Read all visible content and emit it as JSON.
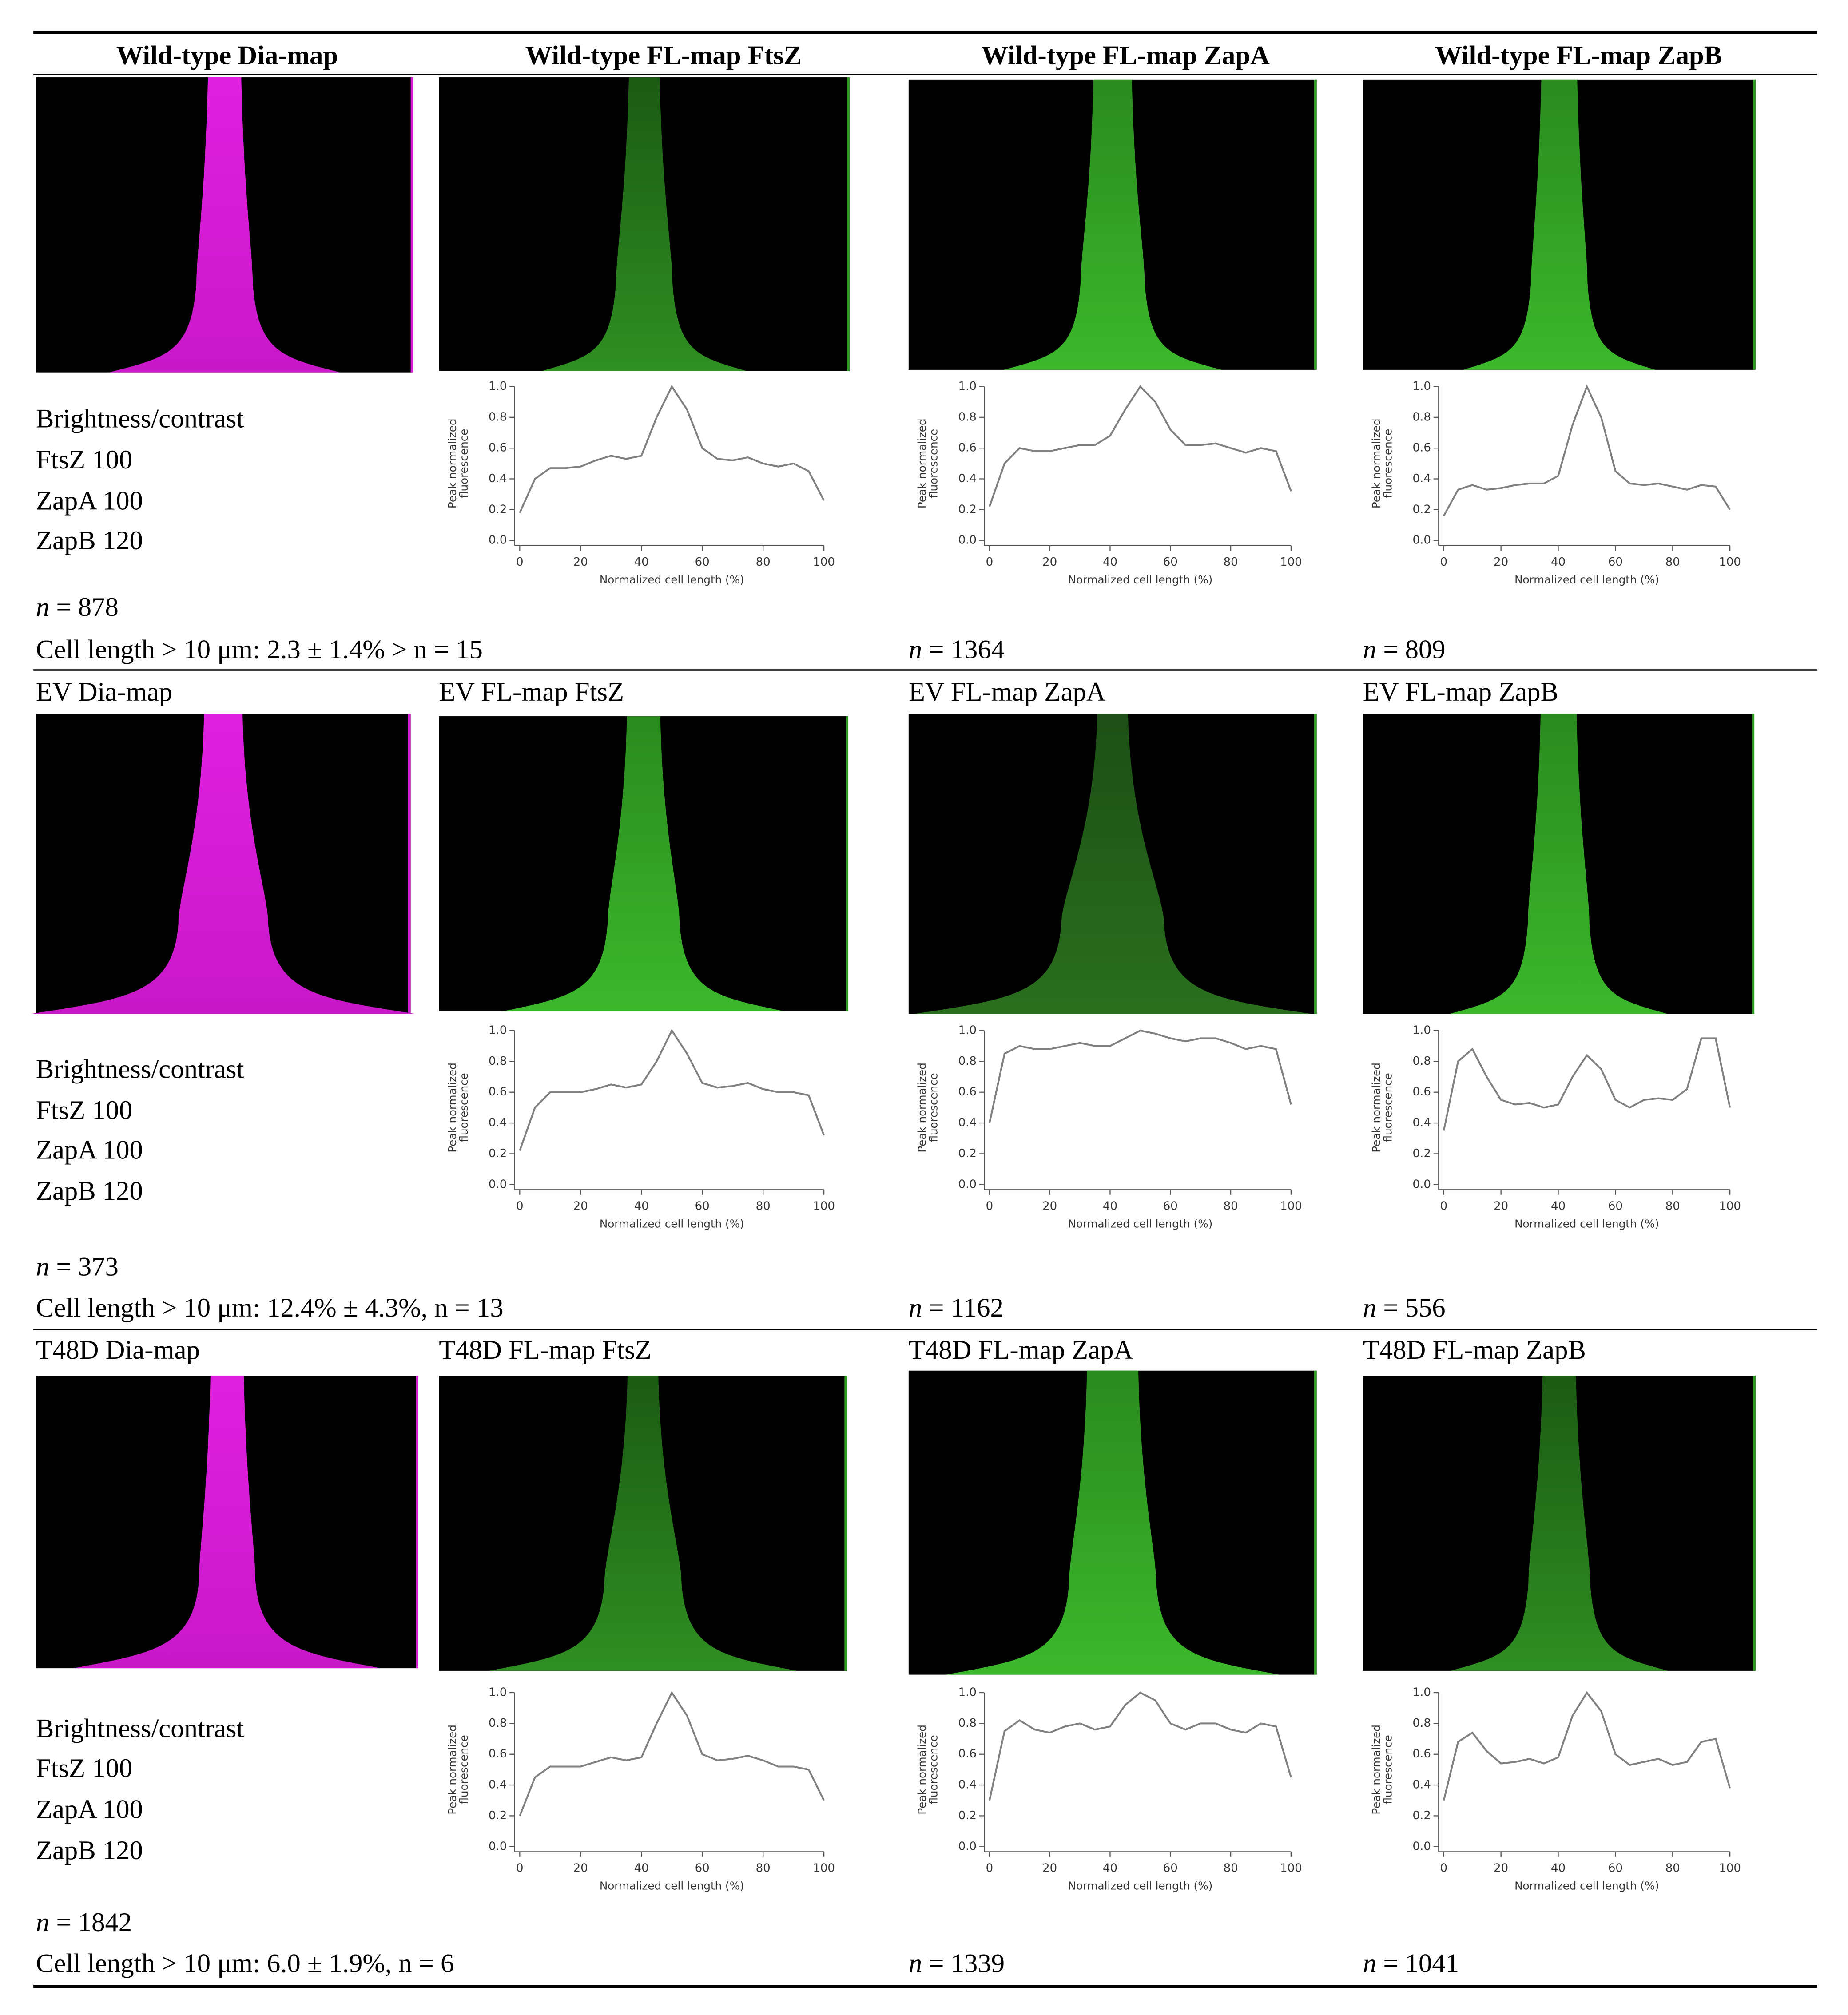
{
  "table": {
    "rows": [
      {
        "labels": [
          "Wild-type Dia-map",
          "Wild-type FL-map FtsZ",
          "Wild-type FL-map ZapA",
          "Wild-type FL-map ZapB"
        ],
        "notes": [
          "Brightness/contrast",
          "FtsZ 100",
          "ZapA 100",
          "ZapB 120"
        ],
        "n_dia": "n = 878",
        "cell_length": "Cell length > 10 μm: 2.3 ± 1.4% > n = 15",
        "counts": [
          "n = 1364",
          "n = 809"
        ]
      },
      {
        "labels": [
          "EV Dia-map",
          "EV FL-map FtsZ",
          "EV FL-map ZapA",
          "EV FL-map ZapB"
        ],
        "notes": [
          "Brightness/contrast",
          "FtsZ 100",
          "ZapA 100",
          "ZapB 120"
        ],
        "n_dia": "n = 373",
        "cell_length": "Cell length > 10 μm: 12.4% ± 4.3%, n = 13",
        "counts": [
          "n = 1162",
          "n = 556"
        ]
      },
      {
        "labels": [
          "T48D Dia-map",
          "T48D FL-map FtsZ",
          "T48D FL-map ZapA",
          "T48D FL-map ZapB"
        ],
        "notes": [
          "Brightness/contrast",
          "FtsZ 100",
          "ZapA 100",
          "ZapB 120"
        ],
        "n_dia": "n = 1842",
        "cell_length": "Cell length > 10 μm: 6.0 ± 1.9%, n = 6",
        "counts": [
          "n = 1339",
          "n = 1041"
        ]
      }
    ]
  },
  "chart_data": [
    {
      "type": "line",
      "xlabel": "Normalized cell length (%)",
      "ylabel": [
        "Peak normalized",
        "fluorescence"
      ],
      "x": [
        0,
        5,
        10,
        15,
        20,
        25,
        30,
        35,
        40,
        45,
        50,
        55,
        60,
        65,
        70,
        75,
        80,
        85,
        90,
        95,
        100
      ],
      "series": [
        {
          "color": "#808080",
          "values": [
            0.18,
            0.4,
            0.47,
            0.47,
            0.48,
            0.52,
            0.55,
            0.53,
            0.55,
            0.8,
            1.0,
            0.85,
            0.6,
            0.53,
            0.52,
            0.54,
            0.5,
            0.48,
            0.5,
            0.45,
            0.26
          ]
        }
      ],
      "xlim": [
        0,
        100
      ],
      "ylim": [
        0,
        1
      ],
      "xticks": [
        0,
        20,
        40,
        60,
        80,
        100
      ],
      "yticks": [
        {
          "value": 0,
          "label": "0.0"
        },
        0.2,
        0.4,
        0.6,
        0.8,
        {
          "value": 1,
          "label": "1.0"
        }
      ]
    },
    {
      "type": "line",
      "xlabel": "Normalized cell length (%)",
      "ylabel": [
        "Peak normalized",
        "fluorescence"
      ],
      "x": [
        0,
        5,
        10,
        15,
        20,
        25,
        30,
        35,
        40,
        45,
        50,
        55,
        60,
        65,
        70,
        75,
        80,
        85,
        90,
        95,
        100
      ],
      "series": [
        {
          "color": "#808080",
          "values": [
            0.22,
            0.5,
            0.6,
            0.58,
            0.58,
            0.6,
            0.62,
            0.62,
            0.68,
            0.85,
            1.0,
            0.9,
            0.72,
            0.62,
            0.62,
            0.63,
            0.6,
            0.57,
            0.6,
            0.58,
            0.32
          ]
        }
      ],
      "xlim": [
        0,
        100
      ],
      "ylim": [
        0,
        1
      ],
      "xticks": [
        0,
        20,
        40,
        60,
        80,
        100
      ],
      "yticks": [
        {
          "value": 0,
          "label": "0.0"
        },
        0.2,
        0.4,
        0.6,
        0.8,
        {
          "value": 1,
          "label": "1.0"
        }
      ]
    },
    {
      "type": "line",
      "xlabel": "Normalized cell length (%)",
      "ylabel": [
        "Peak normalized",
        "fluorescence"
      ],
      "x": [
        0,
        5,
        10,
        15,
        20,
        25,
        30,
        35,
        40,
        45,
        50,
        55,
        60,
        65,
        70,
        75,
        80,
        85,
        90,
        95,
        100
      ],
      "series": [
        {
          "color": "#808080",
          "values": [
            0.16,
            0.33,
            0.36,
            0.33,
            0.34,
            0.36,
            0.37,
            0.37,
            0.42,
            0.75,
            1.0,
            0.8,
            0.45,
            0.37,
            0.36,
            0.37,
            0.35,
            0.33,
            0.36,
            0.35,
            0.2
          ]
        }
      ],
      "xlim": [
        0,
        100
      ],
      "ylim": [
        0,
        1
      ],
      "xticks": [
        0,
        20,
        40,
        60,
        80,
        100
      ],
      "yticks": [
        {
          "value": 0,
          "label": "0.0"
        },
        0.2,
        0.4,
        0.6,
        0.8,
        {
          "value": 1,
          "label": "1.0"
        }
      ]
    },
    {
      "type": "line",
      "xlabel": "Normalized cell length (%)",
      "ylabel": [
        "Peak normalized",
        "fluorescence"
      ],
      "x": [
        0,
        5,
        10,
        15,
        20,
        25,
        30,
        35,
        40,
        45,
        50,
        55,
        60,
        65,
        70,
        75,
        80,
        85,
        90,
        95,
        100
      ],
      "series": [
        {
          "color": "#808080",
          "values": [
            0.22,
            0.5,
            0.6,
            0.6,
            0.6,
            0.62,
            0.65,
            0.63,
            0.65,
            0.8,
            1.0,
            0.85,
            0.66,
            0.63,
            0.64,
            0.66,
            0.62,
            0.6,
            0.6,
            0.58,
            0.32
          ]
        }
      ],
      "xlim": [
        0,
        100
      ],
      "ylim": [
        0,
        1
      ],
      "xticks": [
        0,
        20,
        40,
        60,
        80,
        100
      ],
      "yticks": [
        {
          "value": 0,
          "label": "0.0"
        },
        0.2,
        0.4,
        0.6,
        0.8,
        {
          "value": 1,
          "label": "1.0"
        }
      ]
    },
    {
      "type": "line",
      "xlabel": "Normalized cell length (%)",
      "ylabel": [
        "Peak normalized",
        "fluorescence"
      ],
      "x": [
        0,
        5,
        10,
        15,
        20,
        25,
        30,
        35,
        40,
        45,
        50,
        55,
        60,
        65,
        70,
        75,
        80,
        85,
        90,
        95,
        100
      ],
      "series": [
        {
          "color": "#808080",
          "values": [
            0.4,
            0.85,
            0.9,
            0.88,
            0.88,
            0.9,
            0.92,
            0.9,
            0.9,
            0.95,
            1.0,
            0.98,
            0.95,
            0.93,
            0.95,
            0.95,
            0.92,
            0.88,
            0.9,
            0.88,
            0.52
          ]
        }
      ],
      "xlim": [
        0,
        100
      ],
      "ylim": [
        0,
        1
      ],
      "xticks": [
        0,
        20,
        40,
        60,
        80,
        100
      ],
      "yticks": [
        {
          "value": 0,
          "label": "0.0"
        },
        0.2,
        0.4,
        0.6,
        0.8,
        {
          "value": 1,
          "label": "1.0"
        }
      ]
    },
    {
      "type": "line",
      "xlabel": "Normalized cell length (%)",
      "ylabel": [
        "Peak normalized",
        "fluorescence"
      ],
      "x": [
        0,
        5,
        10,
        15,
        20,
        25,
        30,
        35,
        40,
        45,
        50,
        55,
        60,
        65,
        70,
        75,
        80,
        85,
        90,
        95,
        100
      ],
      "series": [
        {
          "color": "#808080",
          "values": [
            0.35,
            0.8,
            0.88,
            0.7,
            0.55,
            0.52,
            0.53,
            0.5,
            0.52,
            0.7,
            0.84,
            0.75,
            0.55,
            0.5,
            0.55,
            0.56,
            0.55,
            0.62,
            0.95,
            0.95,
            0.5
          ]
        }
      ],
      "xlim": [
        0,
        100
      ],
      "ylim": [
        0,
        1
      ],
      "xticks": [
        0,
        20,
        40,
        60,
        80,
        100
      ],
      "yticks": [
        {
          "value": 0,
          "label": "0.0"
        },
        0.2,
        0.4,
        0.6,
        0.8,
        {
          "value": 1,
          "label": "1.0"
        }
      ]
    },
    {
      "type": "line",
      "xlabel": "Normalized cell length (%)",
      "ylabel": [
        "Peak normalized",
        "fluorescence"
      ],
      "x": [
        0,
        5,
        10,
        15,
        20,
        25,
        30,
        35,
        40,
        45,
        50,
        55,
        60,
        65,
        70,
        75,
        80,
        85,
        90,
        95,
        100
      ],
      "series": [
        {
          "color": "#808080",
          "values": [
            0.2,
            0.45,
            0.52,
            0.52,
            0.52,
            0.55,
            0.58,
            0.56,
            0.58,
            0.8,
            1.0,
            0.85,
            0.6,
            0.56,
            0.57,
            0.59,
            0.56,
            0.52,
            0.52,
            0.5,
            0.3
          ]
        }
      ],
      "xlim": [
        0,
        100
      ],
      "ylim": [
        0,
        1
      ],
      "xticks": [
        0,
        20,
        40,
        60,
        80,
        100
      ],
      "yticks": [
        {
          "value": 0,
          "label": "0.0"
        },
        0.2,
        0.4,
        0.6,
        0.8,
        {
          "value": 1,
          "label": "1.0"
        }
      ]
    },
    {
      "type": "line",
      "xlabel": "Normalized cell length (%)",
      "ylabel": [
        "Peak normalized",
        "fluorescence"
      ],
      "x": [
        0,
        5,
        10,
        15,
        20,
        25,
        30,
        35,
        40,
        45,
        50,
        55,
        60,
        65,
        70,
        75,
        80,
        85,
        90,
        95,
        100
      ],
      "series": [
        {
          "color": "#808080",
          "values": [
            0.3,
            0.75,
            0.82,
            0.76,
            0.74,
            0.78,
            0.8,
            0.76,
            0.78,
            0.92,
            1.0,
            0.95,
            0.8,
            0.76,
            0.8,
            0.8,
            0.76,
            0.74,
            0.8,
            0.78,
            0.45
          ]
        }
      ],
      "xlim": [
        0,
        100
      ],
      "ylim": [
        0,
        1
      ],
      "xticks": [
        0,
        20,
        40,
        60,
        80,
        100
      ],
      "yticks": [
        {
          "value": 0,
          "label": "0.0"
        },
        0.2,
        0.4,
        0.6,
        0.8,
        {
          "value": 1,
          "label": "1.0"
        }
      ]
    },
    {
      "type": "line",
      "xlabel": "Normalized cell length (%)",
      "ylabel": [
        "Peak normalized",
        "fluorescence"
      ],
      "x": [
        0,
        5,
        10,
        15,
        20,
        25,
        30,
        35,
        40,
        45,
        50,
        55,
        60,
        65,
        70,
        75,
        80,
        85,
        90,
        95,
        100
      ],
      "series": [
        {
          "color": "#808080",
          "values": [
            0.3,
            0.68,
            0.74,
            0.62,
            0.54,
            0.55,
            0.57,
            0.54,
            0.58,
            0.85,
            1.0,
            0.88,
            0.6,
            0.53,
            0.55,
            0.57,
            0.53,
            0.55,
            0.68,
            0.7,
            0.38
          ]
        }
      ],
      "xlim": [
        0,
        100
      ],
      "ylim": [
        0,
        1
      ],
      "xticks": [
        0,
        20,
        40,
        60,
        80,
        100
      ],
      "yticks": [
        {
          "value": 0,
          "label": "0.0"
        },
        0.2,
        0.4,
        0.6,
        0.8,
        {
          "value": 1,
          "label": "1.0"
        }
      ]
    }
  ]
}
